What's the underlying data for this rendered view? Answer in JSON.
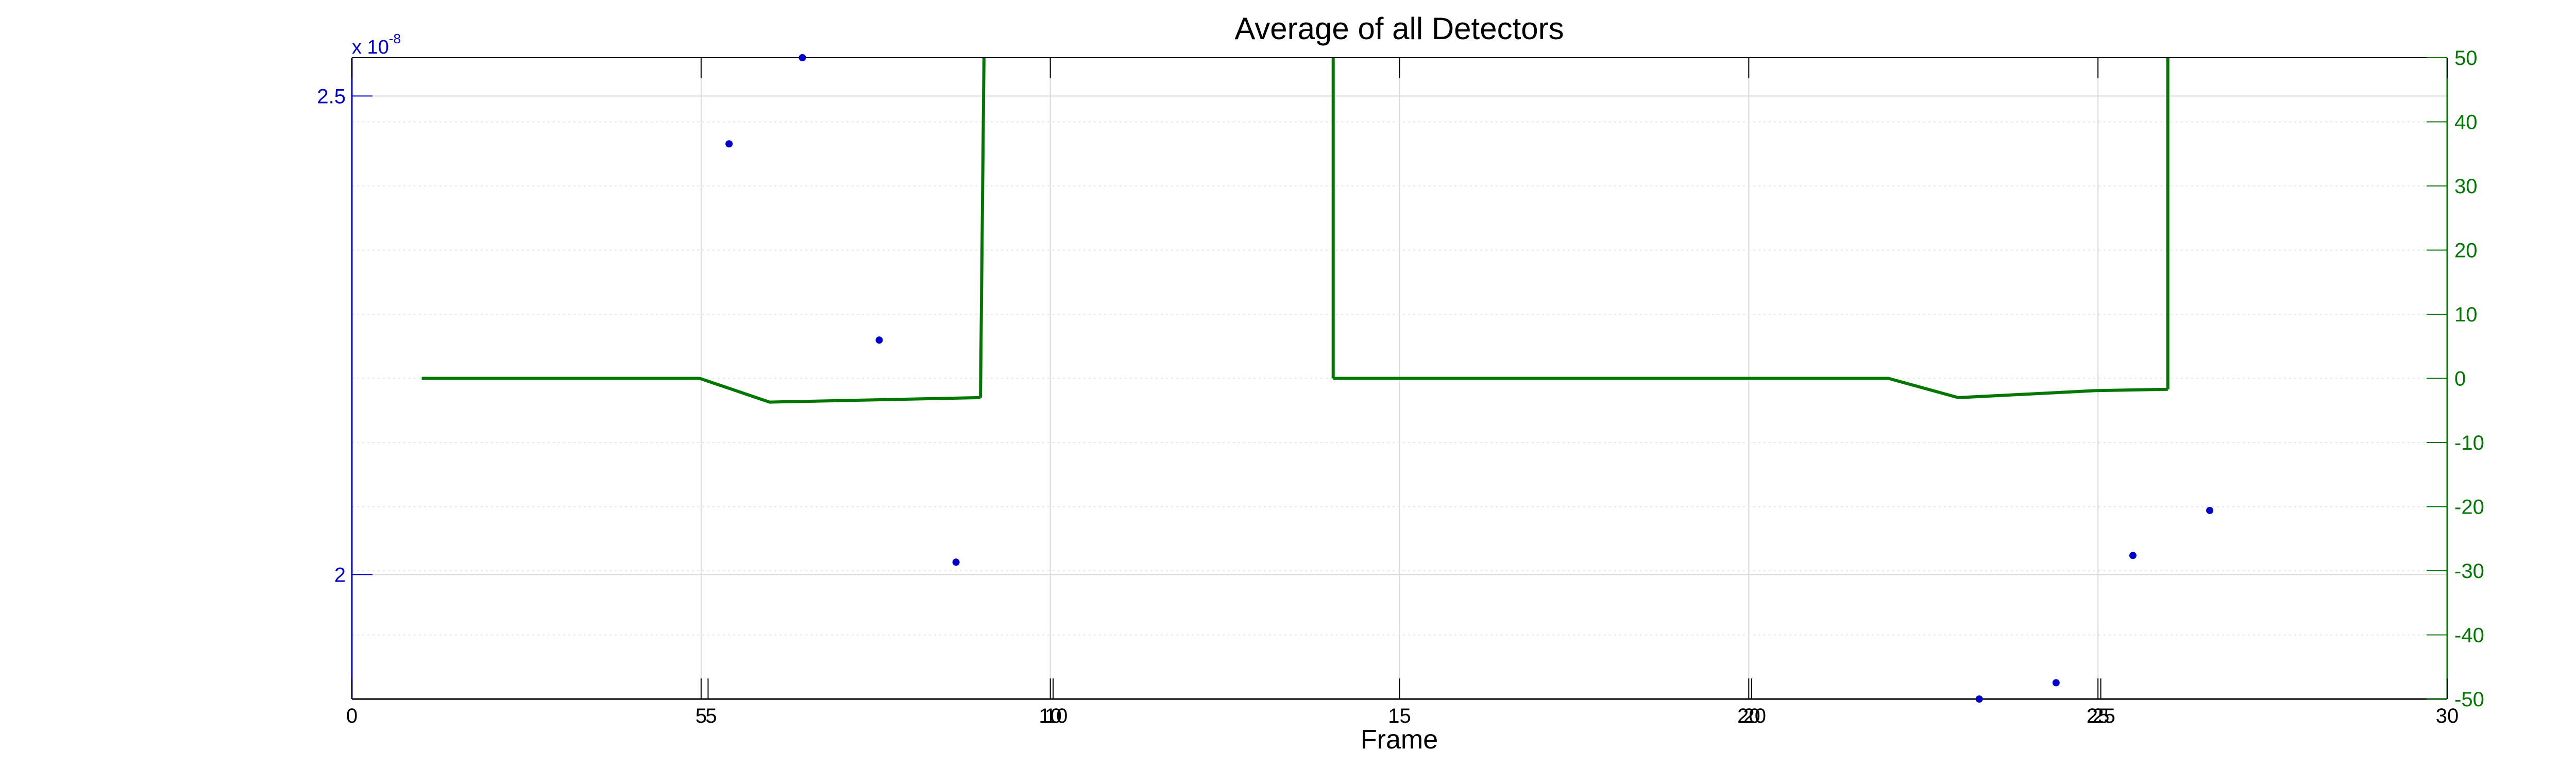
{
  "chart_data": {
    "type": "line+scatter",
    "title": "Average of all Detectors",
    "xlabel": "Frame",
    "xlim": [
      0,
      30
    ],
    "x_ticks_primary": [
      "0",
      "5",
      "10",
      "15",
      "20",
      "25",
      "30"
    ],
    "x_ticks_secondary": [
      "5",
      "10",
      "20",
      "25"
    ],
    "left_axis": {
      "ylim": [
        1.87e-08,
        2.54e-08
      ],
      "ticks": [
        {
          "value": 2.5e-08,
          "label": "2.5"
        },
        {
          "value": 2e-08,
          "label": "2"
        }
      ],
      "exponent_text": "x 10",
      "exponent_power": "-8",
      "color": "#0000cc"
    },
    "right_axis": {
      "ylim": [
        -50,
        50
      ],
      "ticks": [
        "50",
        "40",
        "30",
        "20",
        "10",
        "0",
        "-10",
        "-20",
        "-30",
        "-40",
        "-50"
      ],
      "color": "#007700"
    },
    "series": [
      {
        "type": "scatter",
        "axis": "left",
        "color": "#0000cc",
        "points": [
          [
            5.4,
            2.45e-08
          ],
          [
            6.45,
            2.54e-08
          ],
          [
            7.55,
            2.245e-08
          ],
          [
            8.65,
            2.013e-08
          ],
          [
            23.3,
            1.87e-08
          ],
          [
            24.4,
            1.887e-08
          ],
          [
            25.5,
            2.02e-08
          ],
          [
            26.6,
            2.067e-08
          ]
        ]
      },
      {
        "type": "line",
        "axis": "right",
        "color": "#007700",
        "segments": [
          [
            [
              1.0,
              0
            ],
            [
              4.98,
              0
            ],
            [
              5.98,
              -3.7
            ],
            [
              9.0,
              -3
            ]
          ],
          [
            [
              9.0,
              -3
            ],
            [
              9.05,
              50
            ]
          ],
          [
            [
              14.05,
              50
            ],
            [
              14.05,
              0
            ]
          ],
          [
            [
              14.05,
              0
            ],
            [
              22.0,
              0
            ],
            [
              23.0,
              -3
            ],
            [
              24.98,
              -1.9
            ],
            [
              26.0,
              -1.7
            ]
          ],
          [
            [
              26.0,
              -1.7
            ],
            [
              26.0,
              50
            ]
          ]
        ]
      }
    ],
    "grid": true
  }
}
